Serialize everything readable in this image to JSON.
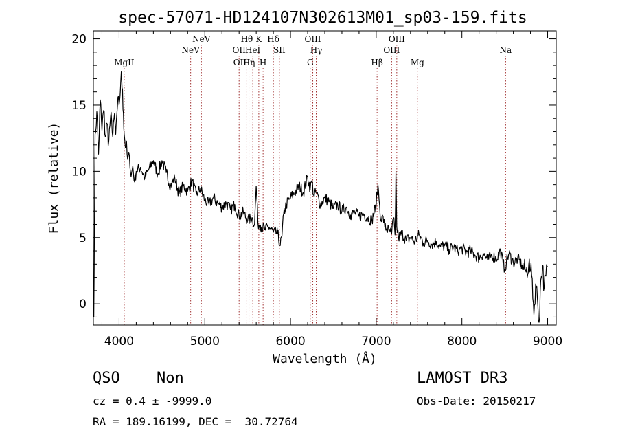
{
  "chart_data": {
    "type": "line",
    "title": "spec-57071-HD124107N302613M01_sp03-159.fits",
    "xlabel": "Wavelength (Å)",
    "ylabel": "Flux (relative)",
    "xlim": [
      3700,
      9100
    ],
    "ylim": [
      -1.6,
      20.6
    ],
    "xticks": [
      4000,
      5000,
      6000,
      7000,
      8000,
      9000
    ],
    "yticks": [
      0,
      5,
      10,
      15,
      20
    ],
    "grid": false,
    "series": [
      {
        "name": "spectrum",
        "x": [
          3705,
          3720,
          3740,
          3760,
          3780,
          3800,
          3820,
          3840,
          3860,
          3880,
          3900,
          3920,
          3940,
          3960,
          3980,
          4000,
          4020,
          4030,
          4040,
          4050,
          4060,
          4080,
          4100,
          4120,
          4140,
          4160,
          4180,
          4200,
          4250,
          4300,
          4350,
          4400,
          4450,
          4500,
          4550,
          4600,
          4650,
          4700,
          4750,
          4800,
          4850,
          4900,
          4950,
          5000,
          5050,
          5100,
          5150,
          5200,
          5250,
          5300,
          5350,
          5400,
          5450,
          5500,
          5550,
          5580,
          5600,
          5620,
          5650,
          5700,
          5750,
          5800,
          5850,
          5880,
          5900,
          5920,
          5950,
          6000,
          6050,
          6100,
          6150,
          6200,
          6230,
          6250,
          6270,
          6300,
          6350,
          6400,
          6450,
          6500,
          6550,
          6600,
          6650,
          6700,
          6750,
          6800,
          6850,
          6900,
          6950,
          7000,
          7020,
          7040,
          7060,
          7080,
          7100,
          7150,
          7180,
          7200,
          7220,
          7230,
          7240,
          7260,
          7300,
          7350,
          7400,
          7450,
          7500,
          7550,
          7600,
          7650,
          7700,
          7750,
          7800,
          7850,
          7900,
          7950,
          8000,
          8050,
          8100,
          8150,
          8200,
          8250,
          8300,
          8350,
          8400,
          8450,
          8480,
          8500,
          8520,
          8550,
          8600,
          8650,
          8700,
          8750,
          8780,
          8800,
          8820,
          8840,
          8860,
          8880,
          8900,
          8920,
          8940,
          8960,
          8980,
          9000
        ],
        "y": [
          -1.0,
          12.8,
          14.5,
          11.3,
          15.4,
          13.1,
          14.6,
          12.6,
          13.6,
          12.3,
          14.1,
          12.9,
          14.0,
          12.8,
          14.8,
          15.0,
          16.8,
          17.0,
          16.2,
          14.4,
          12.8,
          11.8,
          10.9,
          11.2,
          9.6,
          10.4,
          9.2,
          10.0,
          10.3,
          9.5,
          10.2,
          10.8,
          9.8,
          10.8,
          9.9,
          8.9,
          9.5,
          8.3,
          8.9,
          8.5,
          9.3,
          8.2,
          8.7,
          7.8,
          7.5,
          8.0,
          7.6,
          7.3,
          7.6,
          7.1,
          7.5,
          6.6,
          6.9,
          6.3,
          6.5,
          6.0,
          8.9,
          6.1,
          5.9,
          5.6,
          5.8,
          5.4,
          5.3,
          4.4,
          5.1,
          6.8,
          7.5,
          8.0,
          8.4,
          8.9,
          8.4,
          9.6,
          8.7,
          9.3,
          8.2,
          8.4,
          7.5,
          8.0,
          7.7,
          7.2,
          7.5,
          7.0,
          7.3,
          6.7,
          6.9,
          6.6,
          6.8,
          6.5,
          6.3,
          7.5,
          9.0,
          7.4,
          6.2,
          6.6,
          5.8,
          5.5,
          5.3,
          6.5,
          5.2,
          10.0,
          5.8,
          5.0,
          5.3,
          4.8,
          5.0,
          4.7,
          5.2,
          4.6,
          4.8,
          4.5,
          4.7,
          4.3,
          4.4,
          4.1,
          4.3,
          4.0,
          4.2,
          3.9,
          4.0,
          3.7,
          3.5,
          3.8,
          3.3,
          3.7,
          3.4,
          4.0,
          3.1,
          2.6,
          3.2,
          3.8,
          3.1,
          3.4,
          2.9,
          2.4,
          3.0,
          2.5,
          1.9,
          -0.8,
          1.5,
          0.5,
          -1.4,
          1.8,
          2.9,
          1.2,
          2.1,
          2.8
        ]
      }
    ],
    "lines": [
      {
        "x": 4060,
        "label": "MgII",
        "row": 3
      },
      {
        "x": 4835,
        "label": "NeV",
        "row": 2
      },
      {
        "x": 4960,
        "label": "NeV",
        "row": 1
      },
      {
        "x": 5400,
        "label": "OII",
        "row": 2
      },
      {
        "x": 5410,
        "label": "OII",
        "row": 3
      },
      {
        "x": 5490,
        "label": "Hθ",
        "row": 1
      },
      {
        "x": 5515,
        "label": "Hη",
        "row": 3
      },
      {
        "x": 5560,
        "label": "HeI",
        "row": 2
      },
      {
        "x": 5630,
        "label": "K",
        "row": 1
      },
      {
        "x": 5680,
        "label": "H",
        "row": 3
      },
      {
        "x": 5800,
        "label": "Hδ",
        "row": 1
      },
      {
        "x": 5870,
        "label": "SII",
        "row": 2
      },
      {
        "x": 6230,
        "label": "G",
        "row": 3
      },
      {
        "x": 6260,
        "label": "OIII",
        "row": 1
      },
      {
        "x": 6300,
        "label": "Hγ",
        "row": 2
      },
      {
        "x": 7010,
        "label": "Hβ",
        "row": 3
      },
      {
        "x": 7180,
        "label": "OIII",
        "row": 2
      },
      {
        "x": 7240,
        "label": "OIII",
        "row": 1
      },
      {
        "x": 7480,
        "label": "Mg",
        "row": 3
      },
      {
        "x": 8510,
        "label": "Na",
        "row": 2
      }
    ]
  },
  "info": {
    "class": "QSO",
    "subclass": "Non",
    "survey": "LAMOST DR3",
    "cz": "cz = 0.4 ± -9999.0",
    "obs_date": "Obs-Date: 20150217",
    "coords": "RA = 189.16199, DEC =  30.72764"
  },
  "colors": {
    "line_marker": "#a03030",
    "spectrum": "#000000",
    "axis": "#000000"
  }
}
